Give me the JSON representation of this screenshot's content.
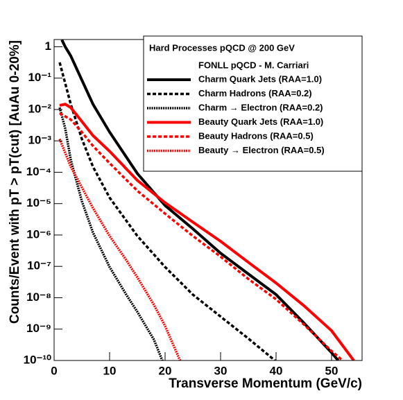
{
  "chart_data": {
    "type": "line",
    "title": "Hard Processes pQCD @ 200 GeV",
    "subtitle": "FONLL pQCD - M. Carriari",
    "x_label": "Transverse Momentum (GeV/c)",
    "y_label": "Counts/Event with pT > pT(cut) [AuAu 0-20%]",
    "xlim": [
      0,
      55.5
    ],
    "xticks": [
      0,
      10,
      20,
      30,
      40,
      50
    ],
    "ylim": [
      1e-10,
      1.7
    ],
    "ylog": true,
    "yticks": [
      {
        "value": 1e-10,
        "label": "10⁻¹⁰"
      },
      {
        "value": 1e-09,
        "label": "10⁻⁹"
      },
      {
        "value": 1e-08,
        "label": "10⁻⁸"
      },
      {
        "value": 1e-07,
        "label": "10⁻⁷"
      },
      {
        "value": 1e-06,
        "label": "10⁻⁶"
      },
      {
        "value": 1e-05,
        "label": "10⁻⁵"
      },
      {
        "value": 0.0001,
        "label": "10⁻⁴"
      },
      {
        "value": 0.001,
        "label": "10⁻³"
      },
      {
        "value": 0.01,
        "label": "10⁻²"
      },
      {
        "value": 0.1,
        "label": "10⁻¹"
      },
      1
    ],
    "grid": false,
    "legend": "top-right",
    "series": [
      {
        "name": "Charm Quark Jets (RAA=1.0)",
        "color": "#000000",
        "style": "solid",
        "x": [
          1.4,
          2,
          3,
          5,
          7,
          10,
          15,
          20,
          25,
          30,
          35,
          40,
          45,
          50,
          51.2
        ],
        "values": [
          1.66,
          1,
          0.513,
          0.0871,
          0.0148,
          0.00191,
          9.12e-05,
          8.71e-06,
          1.58e-06,
          2.63e-07,
          5.75e-08,
          1.26e-08,
          1.58e-09,
          1.78e-10,
          1e-10
        ]
      },
      {
        "name": "Charm Hadrons (RAA=0.2)",
        "color": "#000000",
        "style": "dashed",
        "x": [
          1,
          3,
          5,
          7,
          10,
          15,
          20,
          25,
          30,
          35,
          39.8
        ],
        "values": [
          0.316,
          0.0148,
          0.00115,
          0.000151,
          1.55e-05,
          9.33e-07,
          9.55e-08,
          1.26e-08,
          2.51e-09,
          5.01e-10,
          1e-10
        ]
      },
      {
        "name": "Charm → Electron (RAA=0.2)",
        "color": "#000000",
        "style": "dotted",
        "x": [
          1,
          2,
          3,
          5,
          7,
          10,
          13,
          15,
          18,
          19.5
        ],
        "values": [
          0.0115,
          0.00251,
          0.000251,
          1.2e-05,
          1.2e-06,
          9.55e-08,
          1.26e-08,
          3.55e-09,
          4.57e-10,
          1e-10
        ]
      },
      {
        "name": "Beauty Quark Jets (RAA=1.0)",
        "color": "#ff0000",
        "style": "solid",
        "x": [
          1,
          2,
          3,
          5,
          7,
          10,
          15,
          20,
          25,
          30,
          35,
          40,
          45,
          50,
          54
        ],
        "values": [
          0.0135,
          0.0148,
          0.0115,
          0.00417,
          0.00148,
          0.000468,
          5.5e-05,
          1.07e-05,
          2.57e-06,
          6.31e-07,
          1.35e-07,
          2.95e-08,
          5.62e-09,
          8.91e-10,
          1e-10
        ]
      },
      {
        "name": "Beauty Hadrons (RAA=0.5)",
        "color": "#ff0000",
        "style": "dashed",
        "x": [
          1,
          3,
          5,
          7,
          10,
          15,
          20,
          25,
          30,
          35,
          40,
          45,
          50,
          52
        ],
        "values": [
          0.00759,
          0.00479,
          0.00191,
          0.000692,
          0.000195,
          2.57e-05,
          4.79e-06,
          9.33e-07,
          2.04e-07,
          3.98e-08,
          8.91e-09,
          1.41e-09,
          2e-10,
          1e-10
        ]
      },
      {
        "name": "Beauty → Electron (RAA=0.5)",
        "color": "#ff0000",
        "style": "dotted",
        "x": [
          1,
          3,
          5,
          7,
          10,
          13,
          15,
          18,
          20,
          22.7
        ],
        "values": [
          0.00115,
          0.000151,
          3.31e-05,
          7.24e-06,
          9.33e-07,
          1.58e-07,
          4.47e-08,
          5.89e-09,
          1.26e-09,
          1e-10
        ]
      }
    ]
  }
}
